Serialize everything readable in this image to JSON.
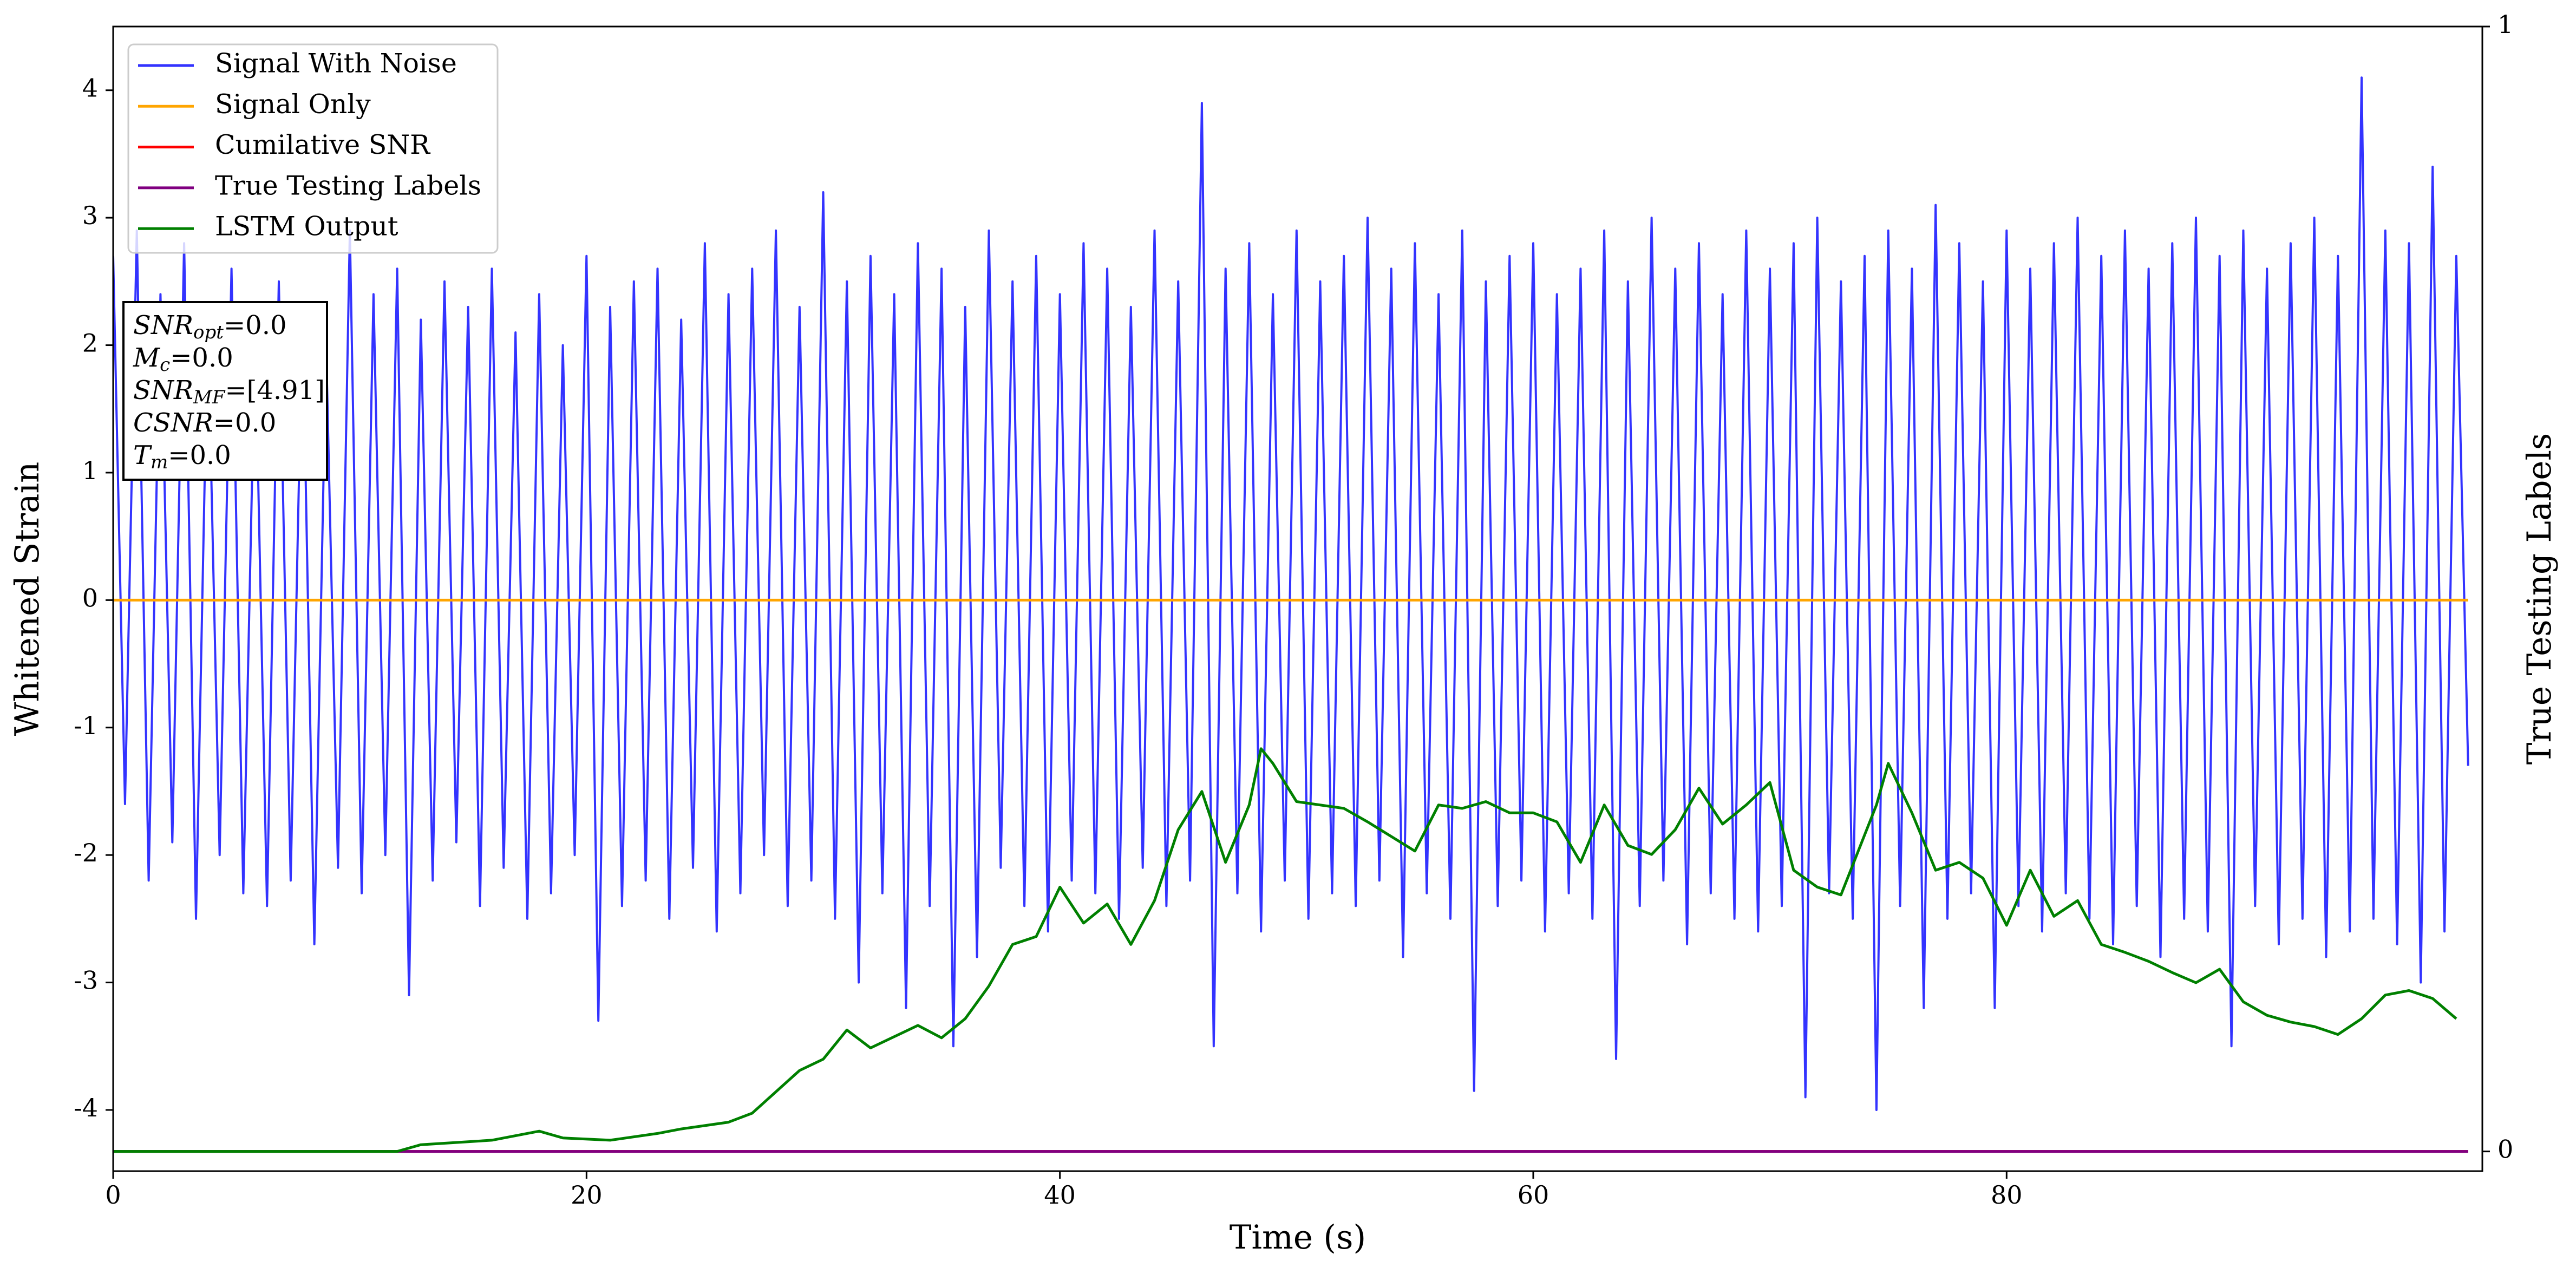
{
  "chart_data": {
    "type": "line",
    "xlabel": "Time (s)",
    "ylabel": "Whitened Strain",
    "y2label": "True Testing Labels",
    "xlim": [
      0,
      100.1
    ],
    "xticks": [
      0,
      20,
      40,
      60,
      80
    ],
    "ylim": [
      -4.48,
      4.5
    ],
    "yticks": [
      -4,
      -3,
      -2,
      -1,
      0,
      1,
      2,
      3,
      4
    ],
    "y2lim": [
      -0.0175,
      1
    ],
    "y2ticks": [
      0,
      1
    ],
    "legend": "upper left",
    "annotation_lines": [
      {
        "base": "SNR",
        "sub": "opt",
        "rest": "=0.0"
      },
      {
        "base": "M",
        "sub": "c",
        "rest": "=0.0"
      },
      {
        "base": "SNR",
        "sub": "MF",
        "rest": "=[4.91]"
      },
      {
        "base": "CSNR",
        "sub": null,
        "rest": "=0.0"
      },
      {
        "base": "T",
        "sub": "m",
        "rest": "=0.0"
      }
    ],
    "series": [
      {
        "name": "Signal With Noise",
        "color": "#3333ff",
        "axis": "y",
        "x": [
          0,
          0.5,
          1,
          1.5,
          2,
          2.5,
          3,
          3.5,
          4,
          4.5,
          5,
          5.5,
          6,
          6.5,
          7,
          7.5,
          8,
          8.5,
          9,
          9.5,
          10,
          10.5,
          11,
          11.5,
          12,
          12.5,
          13,
          13.5,
          14,
          14.5,
          15,
          15.5,
          16,
          16.5,
          17,
          17.5,
          18,
          18.5,
          19,
          19.5,
          20,
          20.5,
          21,
          21.5,
          22,
          22.5,
          23,
          23.5,
          24,
          24.5,
          25,
          25.5,
          26,
          26.5,
          27,
          27.5,
          28,
          28.5,
          29,
          29.5,
          30,
          30.5,
          31,
          31.5,
          32,
          32.5,
          33,
          33.5,
          34,
          34.5,
          35,
          35.5,
          36,
          36.5,
          37,
          37.5,
          38,
          38.5,
          39,
          39.5,
          40,
          40.5,
          41,
          41.5,
          42,
          42.5,
          43,
          43.5,
          44,
          44.5,
          45,
          45.5,
          46,
          46.5,
          47,
          47.5,
          48,
          48.5,
          49,
          49.5,
          50,
          50.5,
          51,
          51.5,
          52,
          52.5,
          53,
          53.5,
          54,
          54.5,
          55,
          55.5,
          56,
          56.5,
          57,
          57.5,
          58,
          58.5,
          59,
          59.5,
          60,
          60.5,
          61,
          61.5,
          62,
          62.5,
          63,
          63.5,
          64,
          64.5,
          65,
          65.5,
          66,
          66.5,
          67,
          67.5,
          68,
          68.5,
          69,
          69.5,
          70,
          70.5,
          71,
          71.5,
          72,
          72.5,
          73,
          73.5,
          74,
          74.5,
          75,
          75.5,
          76,
          76.5,
          77,
          77.5,
          78,
          78.5,
          79,
          79.5,
          80,
          80.5,
          81,
          81.5,
          82,
          82.5,
          83,
          83.5,
          84,
          84.5,
          85,
          85.5,
          86,
          86.5,
          87,
          87.5,
          88,
          88.5,
          89,
          89.5,
          90,
          90.5,
          91,
          91.5,
          92,
          92.5,
          93,
          93.5,
          94,
          94.5,
          95,
          95.5,
          96,
          96.5,
          97,
          97.5,
          98,
          98.5,
          99,
          99.5
        ],
        "values": [
          2.7,
          -1.6,
          2.9,
          -2.2,
          2.4,
          -1.9,
          2.8,
          -2.5,
          2.2,
          -2.0,
          2.6,
          -2.3,
          2.1,
          -2.4,
          2.5,
          -2.2,
          2.3,
          -2.7,
          2.0,
          -2.1,
          2.9,
          -2.3,
          2.4,
          -2.0,
          2.6,
          -3.1,
          2.2,
          -2.2,
          2.5,
          -1.9,
          2.3,
          -2.4,
          2.6,
          -2.1,
          2.1,
          -2.5,
          2.4,
          -2.3,
          2.0,
          -2.0,
          2.7,
          -3.3,
          2.3,
          -2.4,
          2.5,
          -2.2,
          2.6,
          -2.5,
          2.2,
          -2.1,
          2.8,
          -2.6,
          2.4,
          -2.3,
          2.6,
          -2.0,
          2.9,
          -2.4,
          2.3,
          -2.2,
          3.2,
          -2.5,
          2.5,
          -3.0,
          2.7,
          -2.3,
          2.4,
          -3.2,
          2.8,
          -2.4,
          2.6,
          -3.5,
          2.3,
          -2.8,
          2.9,
          -2.1,
          2.5,
          -2.4,
          2.7,
          -2.6,
          2.4,
          -2.2,
          2.8,
          -2.3,
          2.6,
          -2.5,
          2.3,
          -2.1,
          2.9,
          -2.4,
          2.5,
          -2.2,
          3.9,
          -3.5,
          2.6,
          -2.3,
          2.8,
          -2.6,
          2.4,
          -2.2,
          2.9,
          -2.5,
          2.5,
          -2.3,
          2.7,
          -2.4,
          3.0,
          -2.2,
          2.6,
          -2.8,
          2.8,
          -2.3,
          2.4,
          -2.5,
          2.9,
          -3.85,
          2.5,
          -2.4,
          2.7,
          -2.2,
          2.8,
          -2.6,
          2.4,
          -2.3,
          2.6,
          -2.5,
          2.9,
          -3.6,
          2.5,
          -2.4,
          3.0,
          -2.2,
          2.6,
          -2.7,
          2.8,
          -2.3,
          2.4,
          -2.5,
          2.9,
          -2.6,
          2.6,
          -2.4,
          2.8,
          -3.9,
          3.0,
          -2.3,
          2.5,
          -2.5,
          2.7,
          -4.0,
          2.9,
          -2.4,
          2.6,
          -3.2,
          3.1,
          -2.5,
          2.8,
          -2.3,
          2.5,
          -3.2,
          2.9,
          -2.4,
          2.6,
          -2.6,
          2.8,
          -2.3,
          3.0,
          -2.5,
          2.7,
          -2.7,
          2.9,
          -2.4,
          2.6,
          -2.8,
          2.8,
          -2.5,
          3.0,
          -2.6,
          2.7,
          -3.5,
          2.9,
          -2.4,
          2.6,
          -2.7,
          2.8,
          -2.5,
          3.0,
          -2.8,
          2.7,
          -2.6,
          4.1,
          -2.5,
          2.9,
          -2.7,
          2.8,
          -3.0,
          3.4,
          -2.6,
          2.7,
          -1.3
        ]
      },
      {
        "name": "Signal Only",
        "color": "#ffa500",
        "axis": "y",
        "x": [
          0,
          99.5
        ],
        "values": [
          0,
          0
        ]
      },
      {
        "name": "Cumilative SNR",
        "color": "#ff0000",
        "axis": "y2",
        "x": [
          0,
          99.5
        ],
        "values": [
          0,
          0
        ]
      },
      {
        "name": "True Testing Labels",
        "color": "#800080",
        "axis": "y2",
        "x": [
          0,
          99.5
        ],
        "values": [
          0,
          0
        ]
      },
      {
        "name": "LSTM Output",
        "color": "#008000",
        "axis": "y2",
        "x": [
          0,
          12,
          13,
          16,
          18,
          19,
          21,
          23,
          24,
          26,
          27,
          28,
          29,
          30,
          31,
          32,
          34,
          35,
          36,
          37,
          38,
          39,
          40,
          41,
          42,
          43,
          44,
          45,
          46,
          47,
          48,
          48.5,
          49,
          50,
          52,
          53,
          55,
          56,
          57,
          58,
          59,
          60,
          61,
          62,
          63,
          64,
          65,
          66,
          67,
          68,
          69,
          70,
          71,
          72,
          73,
          74.5,
          75,
          76,
          77,
          78,
          79,
          80,
          81,
          82,
          83,
          84,
          85,
          86,
          87,
          88,
          89,
          90,
          91,
          92,
          93,
          94,
          95,
          96,
          97,
          98,
          99
        ],
        "values": [
          0,
          0,
          0.006,
          0.01,
          0.018,
          0.012,
          0.01,
          0.016,
          0.02,
          0.026,
          0.034,
          0.053,
          0.072,
          0.082,
          0.108,
          0.092,
          0.112,
          0.101,
          0.118,
          0.147,
          0.184,
          0.191,
          0.235,
          0.203,
          0.22,
          0.184,
          0.223,
          0.286,
          0.32,
          0.257,
          0.308,
          0.358,
          0.345,
          0.311,
          0.305,
          0.293,
          0.267,
          0.308,
          0.305,
          0.311,
          0.301,
          0.301,
          0.293,
          0.257,
          0.308,
          0.272,
          0.264,
          0.286,
          0.323,
          0.291,
          0.308,
          0.328,
          0.25,
          0.235,
          0.228,
          0.308,
          0.345,
          0.301,
          0.25,
          0.257,
          0.243,
          0.201,
          0.25,
          0.209,
          0.223,
          0.184,
          0.177,
          0.169,
          0.159,
          0.15,
          0.162,
          0.133,
          0.121,
          0.115,
          0.111,
          0.104,
          0.118,
          0.139,
          0.143,
          0.136,
          0.118
        ]
      }
    ]
  }
}
